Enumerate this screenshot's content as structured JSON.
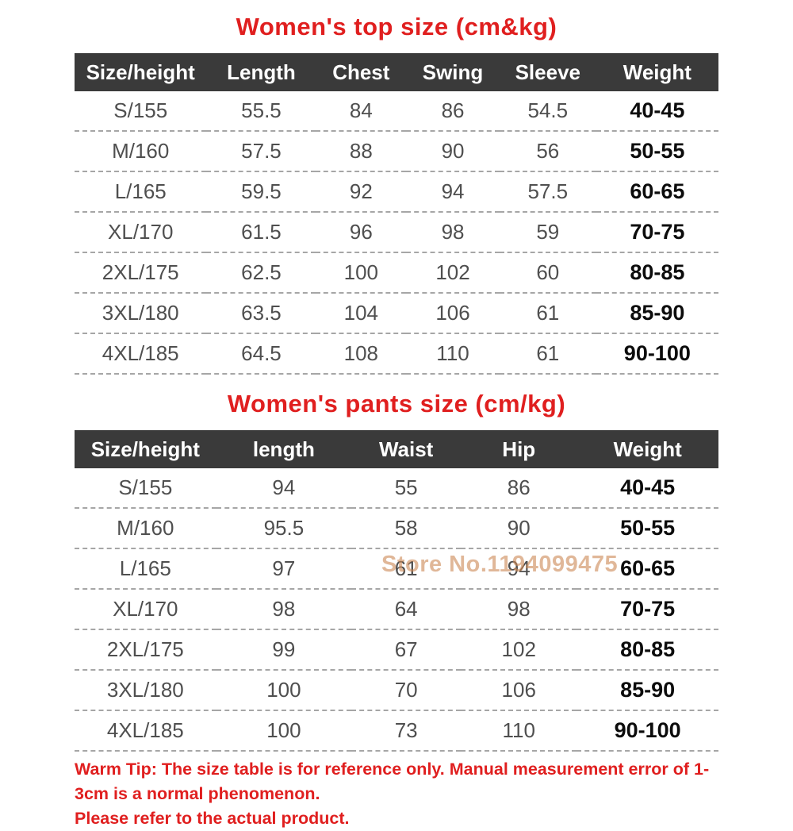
{
  "colors": {
    "title_red": "#e01f1f",
    "header_bg": "#3a3a3a",
    "header_text": "#ffffff",
    "body_text": "#4f4f4f",
    "weight_text": "#0c0c0c",
    "dashed_line": "#a6a6a6",
    "watermark_tan": "#cb8754"
  },
  "top_table": {
    "title": "Women's top size (cm&kg)",
    "headers": [
      "Size/height",
      "Length",
      "Chest",
      "Swing",
      "Sleeve",
      "Weight"
    ],
    "rows": [
      [
        "S/155",
        "55.5",
        "84",
        "86",
        "54.5",
        "40-45"
      ],
      [
        "M/160",
        "57.5",
        "88",
        "90",
        "56",
        "50-55"
      ],
      [
        "L/165",
        "59.5",
        "92",
        "94",
        "57.5",
        "60-65"
      ],
      [
        "XL/170",
        "61.5",
        "96",
        "98",
        "59",
        "70-75"
      ],
      [
        "2XL/175",
        "62.5",
        "100",
        "102",
        "60",
        "80-85"
      ],
      [
        "3XL/180",
        "63.5",
        "104",
        "106",
        "61",
        "85-90"
      ],
      [
        "4XL/185",
        "64.5",
        "108",
        "110",
        "61",
        "90-100"
      ]
    ]
  },
  "pants_table": {
    "title": "Women's pants size (cm/kg)",
    "headers": [
      "Size/height",
      "length",
      "Waist",
      "Hip",
      "Weight"
    ],
    "rows": [
      [
        "S/155",
        "94",
        "55",
        "86",
        "40-45"
      ],
      [
        "M/160",
        "95.5",
        "58",
        "90",
        "50-55"
      ],
      [
        "L/165",
        "97",
        "61",
        "94",
        "60-65"
      ],
      [
        "XL/170",
        "98",
        "64",
        "98",
        "70-75"
      ],
      [
        "2XL/175",
        "99",
        "67",
        "102",
        "80-85"
      ],
      [
        "3XL/180",
        "100",
        "70",
        "106",
        "85-90"
      ],
      [
        "4XL/185",
        "100",
        "73",
        "110",
        "90-100"
      ]
    ]
  },
  "watermark": "Store No.1194099475",
  "warm_tip": {
    "line1": "Warm Tip: The size table is for reference only. Manual measurement error of 1-3cm is a normal phenomenon.",
    "line2": "Please refer to the actual product."
  }
}
